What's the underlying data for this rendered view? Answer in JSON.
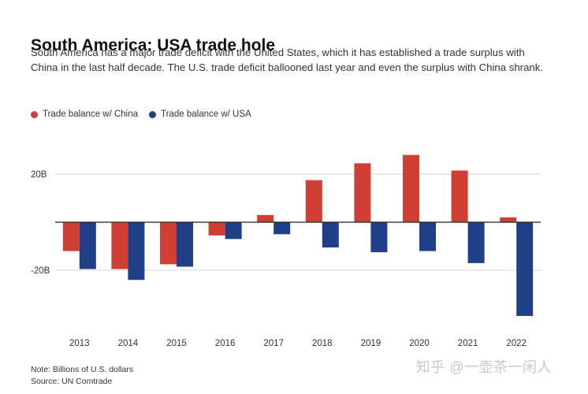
{
  "header": {
    "title": "South America: USA trade hole",
    "subtitle": "South America has a major trade deficit with the United States, which it has established a trade surplus with China in the last half decade. The U.S. trade deficit ballooned last year and even the surplus with China shrank."
  },
  "legend": {
    "china_label": "Trade balance w/ China",
    "usa_label": "Trade balance w/ USA"
  },
  "colors": {
    "china": "#d13f34",
    "usa": "#1f3f86",
    "grid": "#d4d4d4",
    "axis": "#222222"
  },
  "chart_data": {
    "type": "bar",
    "title": "South America: USA trade hole",
    "categories": [
      "2013",
      "2014",
      "2015",
      "2016",
      "2017",
      "2018",
      "2019",
      "2020",
      "2021",
      "2022"
    ],
    "series": [
      {
        "name": "Trade balance w/ China",
        "values": [
          -12,
          -19.5,
          -17.5,
          -5.5,
          3,
          17.5,
          24.5,
          28,
          21.5,
          2
        ]
      },
      {
        "name": "Trade balance w/ USA",
        "values": [
          -19.5,
          -24,
          -18.5,
          -7,
          -5,
          -10.5,
          -12.5,
          -12,
          -17,
          -39
        ]
      }
    ],
    "yticks": [
      {
        "value": 20,
        "label": "20B"
      },
      {
        "value": -20,
        "label": "-20B"
      }
    ],
    "ylim": [
      -40,
      30
    ],
    "xlabel": "",
    "ylabel": "",
    "legend_position": "top-left"
  },
  "footer": {
    "note": "Note: Billions of U.S. dollars",
    "source": "Source: UN Comtrade"
  },
  "watermark": "知乎 @一壶茶一闲人"
}
